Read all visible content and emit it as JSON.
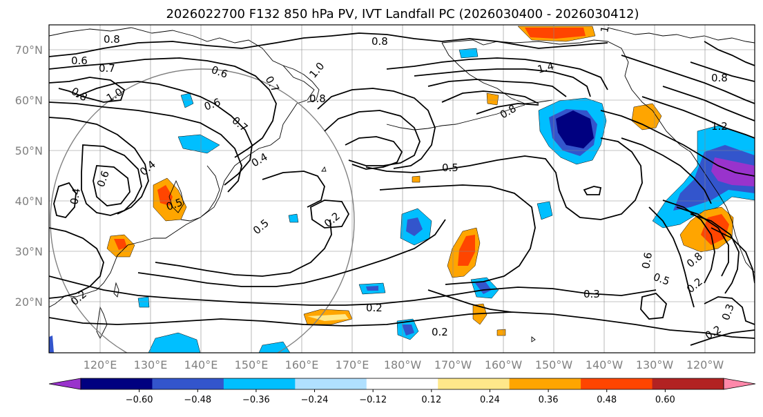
{
  "title": "2026022700 F132 850 hPa PV, IVT Landfall PC (2026030400 - 2026030412)",
  "chart_data": {
    "type": "map",
    "lat_ticks": [
      "70°N",
      "60°N",
      "50°N",
      "40°N",
      "30°N",
      "20°N"
    ],
    "lon_ticks": [
      "120°E",
      "130°E",
      "140°E",
      "150°E",
      "160°E",
      "170°E",
      "180°W",
      "170°W",
      "160°W",
      "150°W",
      "140°W",
      "130°W",
      "120°W"
    ],
    "colorbar": {
      "ticks": [
        "−0.60",
        "−0.48",
        "−0.36",
        "−0.24",
        "−0.12",
        "0.12",
        "0.24",
        "0.36",
        "0.48",
        "0.60"
      ],
      "colors": [
        "#9933cc",
        "#000080",
        "#3355cc",
        "#00bfff",
        "#b0e0ff",
        "#ffffff",
        "#ffe88a",
        "#ffa500",
        "#ff4500",
        "#b22222",
        "#ff88aa"
      ],
      "extend": "both"
    },
    "contour_labels": [
      "0.8",
      "0.6",
      "0.7",
      "0.8",
      "1.0",
      "0.6",
      "0.6",
      "0.7",
      "0.7",
      "1.0",
      "0.8",
      "0.8",
      "0.4",
      "0.4",
      "0.6",
      "0.4",
      "0.5",
      "0.2",
      "0.5",
      "0.2",
      "0.5",
      "0.2",
      "0.3",
      "0.2",
      "1.4",
      "0.8",
      "1.0",
      "1.2",
      "0.8",
      "0.8",
      "0.6",
      "0.5",
      "0.2",
      "0.3",
      "0.2"
    ]
  }
}
